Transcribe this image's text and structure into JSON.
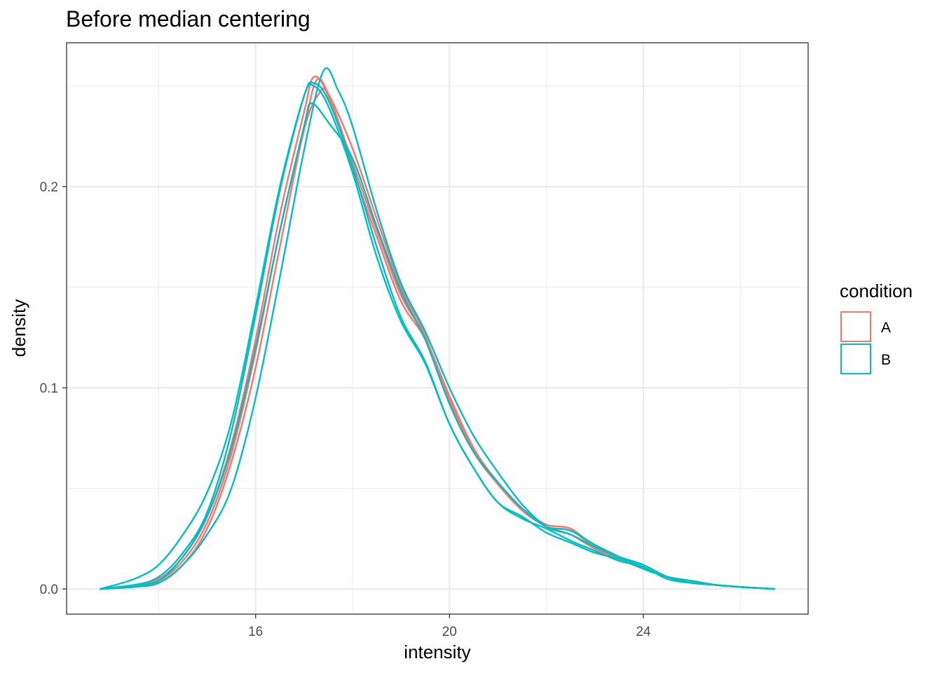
{
  "chart_data": {
    "type": "line",
    "title": "Before median centering",
    "xlabel": "intensity",
    "ylabel": "density",
    "xlim": [
      12.1,
      27.4
    ],
    "ylim": [
      -0.0125,
      0.2715
    ],
    "x_major_ticks": [
      16,
      20,
      24
    ],
    "x_minor_ticks": [
      14,
      18,
      22,
      26
    ],
    "y_major_ticks": [
      0.0,
      0.1,
      0.2
    ],
    "y_minor_ticks": [
      0.05,
      0.15,
      0.25
    ],
    "x_tick_labels": [
      "16",
      "20",
      "24"
    ],
    "y_tick_labels": [
      "0.0",
      "0.1",
      "0.2"
    ],
    "grid": true,
    "legend": {
      "title": "condition",
      "placement": "right",
      "entries": [
        {
          "label": "A",
          "color": "#F8766D"
        },
        {
          "label": "B",
          "color": "#00BFC4"
        }
      ]
    },
    "series": [
      {
        "group": "A",
        "color": "#F8766D",
        "points": [
          [
            12.8,
            0
          ],
          [
            13.5,
            0.0015
          ],
          [
            14.0,
            0.004
          ],
          [
            14.5,
            0.014
          ],
          [
            15.0,
            0.033
          ],
          [
            15.5,
            0.067
          ],
          [
            16.0,
            0.118
          ],
          [
            16.5,
            0.178
          ],
          [
            17.0,
            0.229
          ],
          [
            17.25,
            0.2525
          ],
          [
            17.5,
            0.246
          ],
          [
            18.0,
            0.212
          ],
          [
            18.5,
            0.178
          ],
          [
            19.0,
            0.146
          ],
          [
            19.5,
            0.125
          ],
          [
            20.0,
            0.096
          ],
          [
            20.5,
            0.07
          ],
          [
            21.0,
            0.053
          ],
          [
            21.5,
            0.04
          ],
          [
            22.0,
            0.031
          ],
          [
            22.5,
            0.029
          ],
          [
            23.0,
            0.021
          ],
          [
            23.5,
            0.015
          ],
          [
            24.0,
            0.01
          ],
          [
            24.5,
            0.006
          ],
          [
            25.0,
            0.004
          ],
          [
            25.5,
            0.002
          ],
          [
            26.0,
            0.001
          ],
          [
            26.7,
            0
          ]
        ]
      },
      {
        "group": "A",
        "color": "#F8766D",
        "points": [
          [
            12.8,
            0
          ],
          [
            13.5,
            0.0015
          ],
          [
            14.0,
            0.003
          ],
          [
            14.5,
            0.012
          ],
          [
            15.0,
            0.03
          ],
          [
            15.5,
            0.063
          ],
          [
            16.0,
            0.11
          ],
          [
            16.5,
            0.17
          ],
          [
            17.0,
            0.228
          ],
          [
            17.3,
            0.246
          ],
          [
            17.5,
            0.246
          ],
          [
            18.0,
            0.219
          ],
          [
            18.5,
            0.184
          ],
          [
            19.0,
            0.15
          ],
          [
            19.5,
            0.126
          ],
          [
            20.0,
            0.093
          ],
          [
            20.5,
            0.068
          ],
          [
            21.0,
            0.052
          ],
          [
            21.5,
            0.039
          ],
          [
            22.0,
            0.031
          ],
          [
            22.5,
            0.027
          ],
          [
            23.0,
            0.02
          ],
          [
            23.5,
            0.015
          ],
          [
            24.0,
            0.01
          ],
          [
            24.5,
            0.006
          ],
          [
            25.0,
            0.004
          ],
          [
            25.5,
            0.002
          ],
          [
            26.0,
            0.001
          ],
          [
            26.7,
            0
          ]
        ]
      },
      {
        "group": "A",
        "color": "#F8766D",
        "points": [
          [
            12.8,
            0
          ],
          [
            13.5,
            0.002
          ],
          [
            14.0,
            0.005
          ],
          [
            14.5,
            0.016
          ],
          [
            15.0,
            0.036
          ],
          [
            15.5,
            0.072
          ],
          [
            16.0,
            0.124
          ],
          [
            16.5,
            0.186
          ],
          [
            17.0,
            0.237
          ],
          [
            17.2,
            0.2545
          ],
          [
            17.5,
            0.245
          ],
          [
            18.0,
            0.209
          ],
          [
            18.5,
            0.175
          ],
          [
            19.0,
            0.143
          ],
          [
            19.5,
            0.124
          ],
          [
            20.0,
            0.094
          ],
          [
            20.5,
            0.069
          ],
          [
            21.0,
            0.052
          ],
          [
            21.5,
            0.04
          ],
          [
            22.0,
            0.032
          ],
          [
            22.5,
            0.03
          ],
          [
            23.0,
            0.021
          ],
          [
            23.5,
            0.015
          ],
          [
            24.0,
            0.01
          ],
          [
            24.5,
            0.006
          ],
          [
            25.0,
            0.004
          ],
          [
            25.5,
            0.002
          ],
          [
            26.0,
            0.001
          ],
          [
            26.7,
            0
          ]
        ]
      },
      {
        "group": "B",
        "color": "#00BFC4",
        "points": [
          [
            12.8,
            0
          ],
          [
            13.5,
            0.005
          ],
          [
            14.0,
            0.012
          ],
          [
            14.5,
            0.027
          ],
          [
            15.0,
            0.048
          ],
          [
            15.5,
            0.083
          ],
          [
            16.0,
            0.14
          ],
          [
            16.5,
            0.2
          ],
          [
            17.0,
            0.245
          ],
          [
            17.2,
            0.25
          ],
          [
            17.5,
            0.24
          ],
          [
            18.0,
            0.207
          ],
          [
            18.5,
            0.165
          ],
          [
            19.0,
            0.133
          ],
          [
            19.5,
            0.112
          ],
          [
            20.0,
            0.082
          ],
          [
            20.5,
            0.06
          ],
          [
            21.0,
            0.043
          ],
          [
            21.5,
            0.035
          ],
          [
            22.0,
            0.03
          ],
          [
            22.5,
            0.024
          ],
          [
            23.0,
            0.019
          ],
          [
            23.5,
            0.014
          ],
          [
            24.0,
            0.011
          ],
          [
            24.5,
            0.005
          ],
          [
            25.0,
            0.003
          ],
          [
            25.5,
            0.002
          ],
          [
            26.0,
            0.001
          ],
          [
            26.7,
            0
          ]
        ]
      },
      {
        "group": "B",
        "color": "#00BFC4",
        "points": [
          [
            12.8,
            0
          ],
          [
            13.5,
            0.002
          ],
          [
            14.0,
            0.006
          ],
          [
            14.5,
            0.018
          ],
          [
            15.0,
            0.038
          ],
          [
            15.5,
            0.078
          ],
          [
            16.0,
            0.136
          ],
          [
            16.5,
            0.198
          ],
          [
            17.0,
            0.245
          ],
          [
            17.2,
            0.2515
          ],
          [
            17.5,
            0.243
          ],
          [
            18.0,
            0.21
          ],
          [
            18.5,
            0.17
          ],
          [
            19.0,
            0.135
          ],
          [
            19.5,
            0.113
          ],
          [
            20.0,
            0.082
          ],
          [
            20.5,
            0.06
          ],
          [
            21.0,
            0.043
          ],
          [
            21.5,
            0.036
          ],
          [
            22.0,
            0.028
          ],
          [
            22.5,
            0.023
          ],
          [
            23.0,
            0.018
          ],
          [
            23.5,
            0.015
          ],
          [
            24.0,
            0.011
          ],
          [
            24.5,
            0.005
          ],
          [
            25.0,
            0.003
          ],
          [
            25.5,
            0.002
          ],
          [
            26.0,
            0.001
          ],
          [
            26.7,
            0
          ]
        ]
      },
      {
        "group": "B",
        "color": "#00BFC4",
        "points": [
          [
            12.8,
            0
          ],
          [
            13.5,
            0.002
          ],
          [
            14.0,
            0.004
          ],
          [
            14.5,
            0.016
          ],
          [
            15.0,
            0.036
          ],
          [
            15.5,
            0.07
          ],
          [
            16.0,
            0.12
          ],
          [
            16.5,
            0.178
          ],
          [
            17.0,
            0.23
          ],
          [
            17.15,
            0.2415
          ],
          [
            17.5,
            0.232
          ],
          [
            18.0,
            0.214
          ],
          [
            18.5,
            0.18
          ],
          [
            19.0,
            0.148
          ],
          [
            19.5,
            0.124
          ],
          [
            20.0,
            0.092
          ],
          [
            20.5,
            0.068
          ],
          [
            21.0,
            0.053
          ],
          [
            21.5,
            0.04
          ],
          [
            22.0,
            0.031
          ],
          [
            22.5,
            0.029
          ],
          [
            23.0,
            0.022
          ],
          [
            23.5,
            0.016
          ],
          [
            24.0,
            0.01
          ],
          [
            24.5,
            0.006
          ],
          [
            25.0,
            0.004
          ],
          [
            25.5,
            0.002
          ],
          [
            26.0,
            0.001
          ],
          [
            26.7,
            0
          ]
        ]
      },
      {
        "group": "B",
        "color": "#00BFC4",
        "points": [
          [
            12.8,
            0
          ],
          [
            13.5,
            0.001
          ],
          [
            14.0,
            0.003
          ],
          [
            14.5,
            0.012
          ],
          [
            15.0,
            0.027
          ],
          [
            15.5,
            0.05
          ],
          [
            16.0,
            0.095
          ],
          [
            16.5,
            0.155
          ],
          [
            17.0,
            0.218
          ],
          [
            17.4,
            0.2575
          ],
          [
            17.7,
            0.248
          ],
          [
            18.0,
            0.23
          ],
          [
            18.5,
            0.188
          ],
          [
            19.0,
            0.152
          ],
          [
            19.5,
            0.128
          ],
          [
            20.0,
            0.1
          ],
          [
            20.5,
            0.076
          ],
          [
            21.0,
            0.058
          ],
          [
            21.5,
            0.042
          ],
          [
            22.0,
            0.031
          ],
          [
            22.5,
            0.027
          ],
          [
            23.0,
            0.021
          ],
          [
            23.5,
            0.016
          ],
          [
            24.0,
            0.012
          ],
          [
            24.5,
            0.006
          ],
          [
            25.0,
            0.003
          ],
          [
            25.5,
            0.002
          ],
          [
            26.0,
            0.001
          ],
          [
            26.7,
            0
          ]
        ]
      }
    ]
  }
}
